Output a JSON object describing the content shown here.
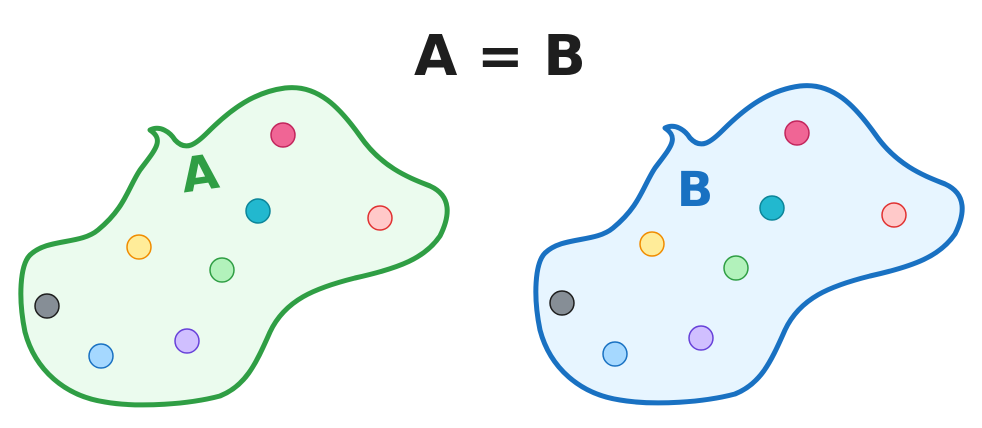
{
  "title": "A = B",
  "set_a": {
    "label": "A",
    "stroke": "#2f9e44",
    "fill": "#ebfbee",
    "points": [
      {
        "name": "pink",
        "fill": "#f06595",
        "stroke": "#c2255c"
      },
      {
        "name": "cyan",
        "fill": "#22b8cf",
        "stroke": "#0c8599"
      },
      {
        "name": "red",
        "fill": "#ffc9c9",
        "stroke": "#e03131"
      },
      {
        "name": "yellow",
        "fill": "#ffec99",
        "stroke": "#f08c00"
      },
      {
        "name": "green",
        "fill": "#b2f2bb",
        "stroke": "#2f9e44"
      },
      {
        "name": "gray",
        "fill": "#868e96",
        "stroke": "#1e1e1e"
      },
      {
        "name": "blue",
        "fill": "#a5d8ff",
        "stroke": "#1971c2"
      },
      {
        "name": "violet",
        "fill": "#d0bfff",
        "stroke": "#6741d9"
      }
    ]
  },
  "set_b": {
    "label": "B",
    "stroke": "#1971c2",
    "fill": "#e7f5ff",
    "points": [
      {
        "name": "pink",
        "fill": "#f06595",
        "stroke": "#c2255c"
      },
      {
        "name": "cyan",
        "fill": "#22b8cf",
        "stroke": "#0c8599"
      },
      {
        "name": "red",
        "fill": "#ffc9c9",
        "stroke": "#e03131"
      },
      {
        "name": "yellow",
        "fill": "#ffec99",
        "stroke": "#f08c00"
      },
      {
        "name": "green",
        "fill": "#b2f2bb",
        "stroke": "#2f9e44"
      },
      {
        "name": "gray",
        "fill": "#868e96",
        "stroke": "#1e1e1e"
      },
      {
        "name": "blue",
        "fill": "#a5d8ff",
        "stroke": "#1971c2"
      },
      {
        "name": "violet",
        "fill": "#d0bfff",
        "stroke": "#6741d9"
      }
    ]
  }
}
